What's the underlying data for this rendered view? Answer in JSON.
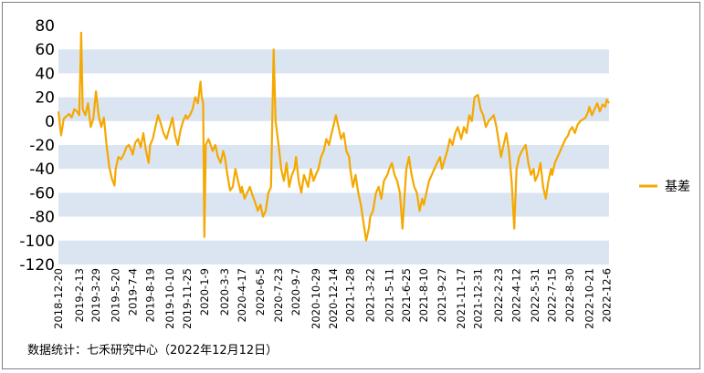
{
  "chart_data": {
    "type": "line",
    "title": "",
    "xlabel": "",
    "ylabel": "",
    "ylim": [
      -120,
      80
    ],
    "yticks": [
      80,
      60,
      40,
      20,
      0,
      -20,
      -40,
      -60,
      -80,
      -100,
      -120
    ],
    "grid": "alternating horizontal bands",
    "legend": "right",
    "x_start": "2018-12-20",
    "x_end": "2022-12-12",
    "x_ticks": [
      "2018-12-20",
      "2019-2-13",
      "2019-3-29",
      "2019-5-20",
      "2019-7-4",
      "2019-8-19",
      "2019-10-10",
      "2019-11-25",
      "2020-1-9",
      "2020-3-3",
      "2020-4-17",
      "2020-6-5",
      "2020-7-23",
      "2020-9-7",
      "2020-10-29",
      "2020-12-14",
      "2021-1-28",
      "2021-3-22",
      "2021-5-11",
      "2021-6-25",
      "2021-8-10",
      "2021-9-27",
      "2021-11-17",
      "2021-12-31",
      "2022-2-23",
      "2022-4-12",
      "2022-5-31",
      "2022-7-15",
      "2022-8-30",
      "2022-10-21",
      "2022-12-6"
    ],
    "series": [
      {
        "name": "基差",
        "color": "#f5a800",
        "points": [
          [
            "2018-12-20",
            8
          ],
          [
            "2018-12-27",
            -12
          ],
          [
            "2019-1-3",
            2
          ],
          [
            "2019-1-10",
            4
          ],
          [
            "2019-1-17",
            6
          ],
          [
            "2019-1-24",
            3
          ],
          [
            "2019-1-31",
            10
          ],
          [
            "2019-2-7",
            8
          ],
          [
            "2019-2-13",
            5
          ],
          [
            "2019-2-18",
            74
          ],
          [
            "2019-2-22",
            10
          ],
          [
            "2019-3-1",
            5
          ],
          [
            "2019-3-8",
            15
          ],
          [
            "2019-3-15",
            -5
          ],
          [
            "2019-3-22",
            2
          ],
          [
            "2019-3-29",
            25
          ],
          [
            "2019-4-5",
            5
          ],
          [
            "2019-4-12",
            -5
          ],
          [
            "2019-4-19",
            3
          ],
          [
            "2019-4-26",
            -20
          ],
          [
            "2019-5-3",
            -38
          ],
          [
            "2019-5-10",
            -48
          ],
          [
            "2019-5-17",
            -54
          ],
          [
            "2019-5-20",
            -40
          ],
          [
            "2019-5-27",
            -30
          ],
          [
            "2019-6-3",
            -32
          ],
          [
            "2019-6-10",
            -28
          ],
          [
            "2019-6-17",
            -22
          ],
          [
            "2019-6-24",
            -20
          ],
          [
            "2019-7-1",
            -25
          ],
          [
            "2019-7-4",
            -28
          ],
          [
            "2019-7-11",
            -18
          ],
          [
            "2019-7-18",
            -15
          ],
          [
            "2019-7-25",
            -22
          ],
          [
            "2019-8-1",
            -10
          ],
          [
            "2019-8-8",
            -25
          ],
          [
            "2019-8-15",
            -35
          ],
          [
            "2019-8-19",
            -20
          ],
          [
            "2019-8-26",
            -15
          ],
          [
            "2019-9-2",
            -5
          ],
          [
            "2019-9-9",
            5
          ],
          [
            "2019-9-16",
            -2
          ],
          [
            "2019-9-23",
            -10
          ],
          [
            "2019-10-1",
            -15
          ],
          [
            "2019-10-10",
            -5
          ],
          [
            "2019-10-17",
            3
          ],
          [
            "2019-10-24",
            -12
          ],
          [
            "2019-10-31",
            -20
          ],
          [
            "2019-11-7",
            -8
          ],
          [
            "2019-11-14",
            0
          ],
          [
            "2019-11-21",
            5
          ],
          [
            "2019-11-25",
            2
          ],
          [
            "2019-12-2",
            5
          ],
          [
            "2019-12-9",
            10
          ],
          [
            "2019-12-16",
            20
          ],
          [
            "2019-12-23",
            15
          ],
          [
            "2019-12-30",
            33
          ],
          [
            "2020-1-2",
            20
          ],
          [
            "2020-1-6",
            15
          ],
          [
            "2020-1-9",
            -97
          ],
          [
            "2020-1-13",
            -20
          ],
          [
            "2020-1-20",
            -15
          ],
          [
            "2020-1-31",
            -25
          ],
          [
            "2020-2-7",
            -20
          ],
          [
            "2020-2-14",
            -30
          ],
          [
            "2020-2-21",
            -35
          ],
          [
            "2020-2-28",
            -25
          ],
          [
            "2020-3-3",
            -30
          ],
          [
            "2020-3-10",
            -45
          ],
          [
            "2020-3-17",
            -58
          ],
          [
            "2020-3-24",
            -55
          ],
          [
            "2020-3-31",
            -40
          ],
          [
            "2020-4-7",
            -50
          ],
          [
            "2020-4-14",
            -60
          ],
          [
            "2020-4-17",
            -55
          ],
          [
            "2020-4-24",
            -65
          ],
          [
            "2020-5-1",
            -60
          ],
          [
            "2020-5-8",
            -55
          ],
          [
            "2020-5-15",
            -62
          ],
          [
            "2020-5-22",
            -68
          ],
          [
            "2020-5-29",
            -75
          ],
          [
            "2020-6-5",
            -70
          ],
          [
            "2020-6-12",
            -80
          ],
          [
            "2020-6-19",
            -75
          ],
          [
            "2020-6-26",
            -60
          ],
          [
            "2020-7-3",
            -55
          ],
          [
            "2020-7-10",
            60
          ],
          [
            "2020-7-15",
            0
          ],
          [
            "2020-7-23",
            -20
          ],
          [
            "2020-7-30",
            -40
          ],
          [
            "2020-8-6",
            -50
          ],
          [
            "2020-8-13",
            -35
          ],
          [
            "2020-8-20",
            -55
          ],
          [
            "2020-8-27",
            -45
          ],
          [
            "2020-9-3",
            -40
          ],
          [
            "2020-9-7",
            -30
          ],
          [
            "2020-9-14",
            -50
          ],
          [
            "2020-9-21",
            -60
          ],
          [
            "2020-9-28",
            -45
          ],
          [
            "2020-10-9",
            -55
          ],
          [
            "2020-10-16",
            -40
          ],
          [
            "2020-10-23",
            -50
          ],
          [
            "2020-10-29",
            -45
          ],
          [
            "2020-11-5",
            -40
          ],
          [
            "2020-11-12",
            -30
          ],
          [
            "2020-11-19",
            -25
          ],
          [
            "2020-11-26",
            -15
          ],
          [
            "2020-12-3",
            -20
          ],
          [
            "2020-12-10",
            -10
          ],
          [
            "2020-12-14",
            -5
          ],
          [
            "2020-12-21",
            5
          ],
          [
            "2020-12-28",
            -5
          ],
          [
            "2021-1-4",
            -15
          ],
          [
            "2021-1-11",
            -10
          ],
          [
            "2021-1-18",
            -25
          ],
          [
            "2021-1-25",
            -30
          ],
          [
            "2021-1-28",
            -40
          ],
          [
            "2021-2-4",
            -55
          ],
          [
            "2021-2-11",
            -45
          ],
          [
            "2021-2-18",
            -60
          ],
          [
            "2021-2-25",
            -70
          ],
          [
            "2021-3-4",
            -85
          ],
          [
            "2021-3-11",
            -100
          ],
          [
            "2021-3-18",
            -90
          ],
          [
            "2021-3-22",
            -80
          ],
          [
            "2021-3-29",
            -75
          ],
          [
            "2021-4-6",
            -60
          ],
          [
            "2021-4-13",
            -55
          ],
          [
            "2021-4-20",
            -65
          ],
          [
            "2021-4-27",
            -50
          ],
          [
            "2021-5-6",
            -45
          ],
          [
            "2021-5-11",
            -40
          ],
          [
            "2021-5-18",
            -35
          ],
          [
            "2021-5-25",
            -45
          ],
          [
            "2021-6-1",
            -50
          ],
          [
            "2021-6-8",
            -60
          ],
          [
            "2021-6-15",
            -90
          ],
          [
            "2021-6-22",
            -55
          ],
          [
            "2021-6-25",
            -40
          ],
          [
            "2021-7-2",
            -30
          ],
          [
            "2021-7-9",
            -45
          ],
          [
            "2021-7-16",
            -55
          ],
          [
            "2021-7-23",
            -60
          ],
          [
            "2021-7-30",
            -75
          ],
          [
            "2021-8-6",
            -65
          ],
          [
            "2021-8-10",
            -70
          ],
          [
            "2021-8-17",
            -60
          ],
          [
            "2021-8-24",
            -50
          ],
          [
            "2021-8-31",
            -45
          ],
          [
            "2021-9-7",
            -40
          ],
          [
            "2021-9-14",
            -35
          ],
          [
            "2021-9-22",
            -30
          ],
          [
            "2021-9-27",
            -40
          ],
          [
            "2021-10-11",
            -25
          ],
          [
            "2021-10-18",
            -15
          ],
          [
            "2021-10-25",
            -20
          ],
          [
            "2021-11-1",
            -10
          ],
          [
            "2021-11-8",
            -5
          ],
          [
            "2021-11-17",
            -15
          ],
          [
            "2021-11-24",
            -5
          ],
          [
            "2021-12-1",
            -10
          ],
          [
            "2021-12-8",
            5
          ],
          [
            "2021-12-15",
            0
          ],
          [
            "2021-12-22",
            20
          ],
          [
            "2021-12-31",
            22
          ],
          [
            "2022-1-7",
            10
          ],
          [
            "2022-1-14",
            5
          ],
          [
            "2022-1-21",
            -5
          ],
          [
            "2022-1-28",
            0
          ],
          [
            "2022-2-11",
            5
          ],
          [
            "2022-2-18",
            -5
          ],
          [
            "2022-2-23",
            -15
          ],
          [
            "2022-3-2",
            -30
          ],
          [
            "2022-3-9",
            -20
          ],
          [
            "2022-3-16",
            -10
          ],
          [
            "2022-3-23",
            -25
          ],
          [
            "2022-3-30",
            -50
          ],
          [
            "2022-4-6",
            -90
          ],
          [
            "2022-4-12",
            -40
          ],
          [
            "2022-4-19",
            -30
          ],
          [
            "2022-4-26",
            -25
          ],
          [
            "2022-5-6",
            -20
          ],
          [
            "2022-5-13",
            -35
          ],
          [
            "2022-5-20",
            -45
          ],
          [
            "2022-5-27",
            -40
          ],
          [
            "2022-5-31",
            -50
          ],
          [
            "2022-6-7",
            -45
          ],
          [
            "2022-6-14",
            -35
          ],
          [
            "2022-6-21",
            -55
          ],
          [
            "2022-6-28",
            -65
          ],
          [
            "2022-7-5",
            -50
          ],
          [
            "2022-7-12",
            -40
          ],
          [
            "2022-7-15",
            -45
          ],
          [
            "2022-7-22",
            -35
          ],
          [
            "2022-7-29",
            -30
          ],
          [
            "2022-8-5",
            -25
          ],
          [
            "2022-8-12",
            -20
          ],
          [
            "2022-8-19",
            -15
          ],
          [
            "2022-8-26",
            -12
          ],
          [
            "2022-8-30",
            -8
          ],
          [
            "2022-9-6",
            -5
          ],
          [
            "2022-9-13",
            -10
          ],
          [
            "2022-9-20",
            -3
          ],
          [
            "2022-9-27",
            0
          ],
          [
            "2022-10-11",
            3
          ],
          [
            "2022-10-18",
            8
          ],
          [
            "2022-10-21",
            12
          ],
          [
            "2022-10-28",
            5
          ],
          [
            "2022-11-4",
            10
          ],
          [
            "2022-11-11",
            15
          ],
          [
            "2022-11-18",
            8
          ],
          [
            "2022-11-25",
            14
          ],
          [
            "2022-12-2",
            12
          ],
          [
            "2022-12-6",
            18
          ],
          [
            "2022-12-12",
            15
          ]
        ]
      }
    ]
  },
  "source": "数据统计：七禾研究中心（2022年12月12日）"
}
